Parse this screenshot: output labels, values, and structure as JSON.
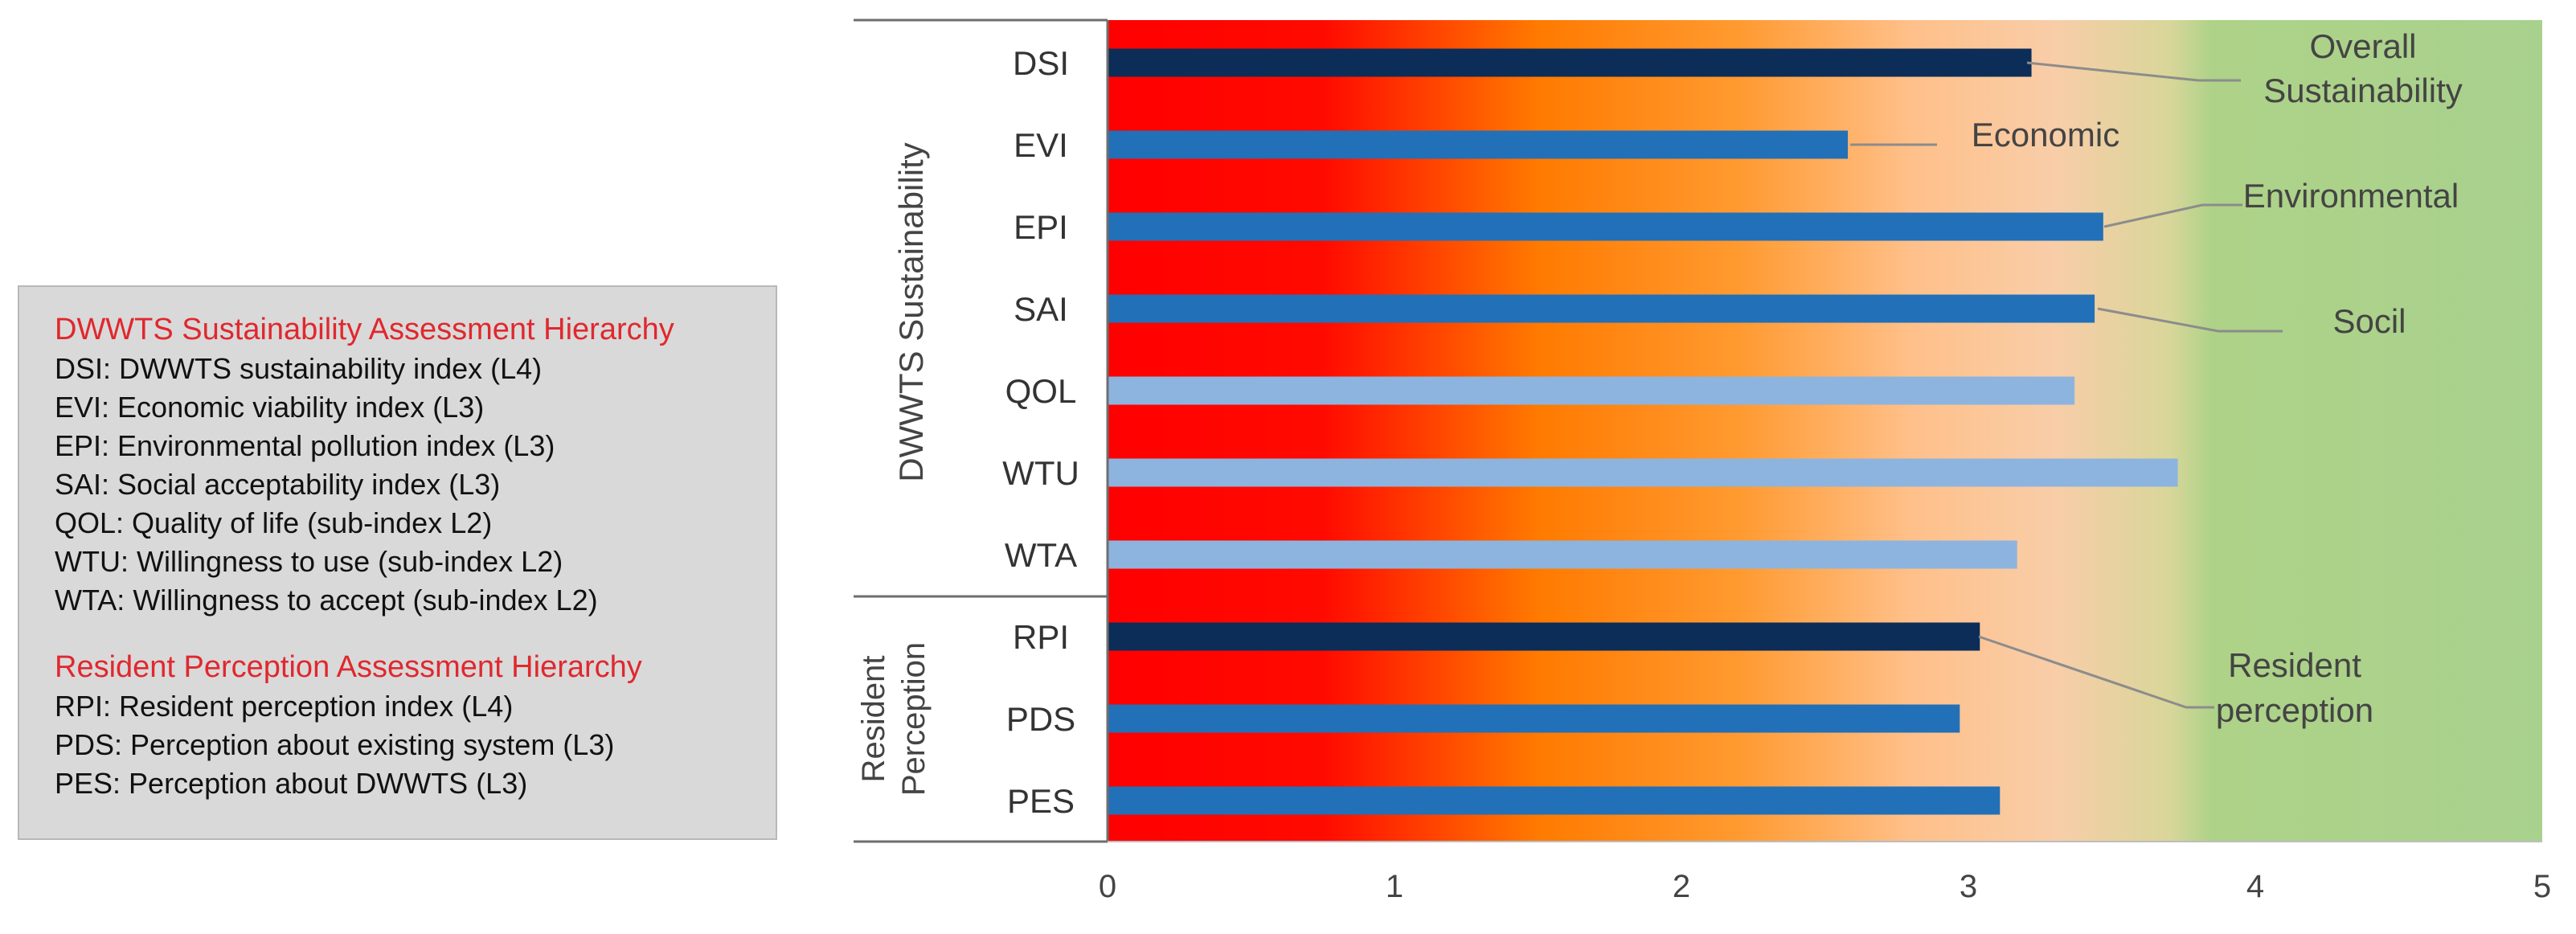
{
  "legend": {
    "group1_title": "DWWTS Sustainability Assessment Hierarchy",
    "group1_items": [
      "DSI: DWWTS sustainability index (L4)",
      "EVI: Economic viability index (L3)",
      "EPI: Environmental pollution index (L3)",
      "SAI: Social acceptability index (L3)",
      "QOL: Quality of life (sub-index L2)",
      "WTU: Willingness to use (sub-index L2)",
      "WTA: Willingness to accept (sub-index L2)"
    ],
    "group2_title": "Resident Perception Assessment Hierarchy",
    "group2_items": [
      "RPI: Resident perception index (L4)",
      "PDS: Perception about existing system (L3)",
      "PES: Perception about DWWTS (L3)"
    ]
  },
  "chart_data": {
    "type": "bar",
    "orientation": "horizontal",
    "xlim": [
      0,
      5
    ],
    "x_ticks": [
      "0",
      "1",
      "2",
      "3",
      "4",
      "5"
    ],
    "groups": [
      {
        "label": "DWWTS Sustainability",
        "categories": [
          "DSI",
          "EVI",
          "EPI",
          "SAI",
          "QOL",
          "WTU",
          "WTA"
        ]
      },
      {
        "label": "Resident Perception",
        "label_lines": [
          "Resident",
          "Perception"
        ],
        "categories": [
          "RPI",
          "PDS",
          "PES"
        ]
      }
    ],
    "bars": [
      {
        "category": "DSI",
        "value": 3.22,
        "level": "L4"
      },
      {
        "category": "EVI",
        "value": 2.58,
        "level": "L3"
      },
      {
        "category": "EPI",
        "value": 3.47,
        "level": "L3"
      },
      {
        "category": "SAI",
        "value": 3.44,
        "level": "L3"
      },
      {
        "category": "QOL",
        "value": 3.37,
        "level": "L2"
      },
      {
        "category": "WTU",
        "value": 3.73,
        "level": "L2"
      },
      {
        "category": "WTA",
        "value": 3.17,
        "level": "L2"
      },
      {
        "category": "RPI",
        "value": 3.04,
        "level": "L4"
      },
      {
        "category": "PDS",
        "value": 2.97,
        "level": "L3"
      },
      {
        "category": "PES",
        "value": 3.11,
        "level": "L3"
      }
    ],
    "level_colors": {
      "L4": "#0c2d57",
      "L3": "#2270b8",
      "L2": "#8db4df"
    },
    "background_gradient": [
      {
        "value": 0.0,
        "color": "#ff0000"
      },
      {
        "value": 0.75,
        "color": "#ff0a00"
      },
      {
        "value": 1.5,
        "color": "#ff7a00"
      },
      {
        "value": 2.2,
        "color": "#ff9a30"
      },
      {
        "value": 2.8,
        "color": "#ffc08a"
      },
      {
        "value": 3.3,
        "color": "#f8cda8"
      },
      {
        "value": 3.7,
        "color": "#d9d69a"
      },
      {
        "value": 3.85,
        "color": "#aed288"
      },
      {
        "value": 5.0,
        "color": "#a9d18e"
      }
    ],
    "annotations": [
      {
        "text_lines": [
          "Overall",
          "Sustainability"
        ],
        "target": "DSI"
      },
      {
        "text_lines": [
          "Economic"
        ],
        "target": "EVI"
      },
      {
        "text_lines": [
          "Environmental"
        ],
        "target": "EPI"
      },
      {
        "text_lines": [
          "Socil"
        ],
        "target": "SAI"
      },
      {
        "text_lines": [
          "Resident",
          "perception"
        ],
        "target": "RPI"
      }
    ]
  }
}
